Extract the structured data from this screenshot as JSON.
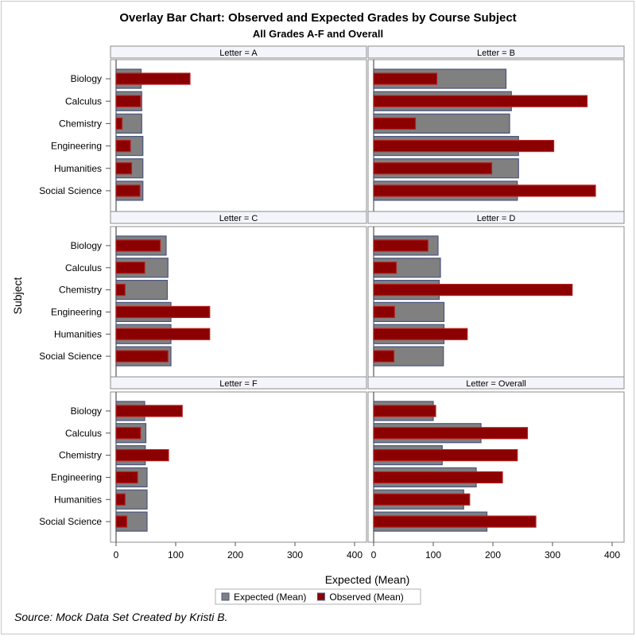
{
  "chart_data": {
    "type": "bar",
    "title": "Overlay Bar Chart: Observed and Expected Grades by Course Subject",
    "subtitle": "All Grades A-F and Overall",
    "xlabel": "Expected (Mean)",
    "ylabel": "Subject",
    "xlim": [
      0,
      420
    ],
    "xticks": [
      "0",
      "100",
      "200",
      "300",
      "400"
    ],
    "categories": [
      "Biology",
      "Calculus",
      "Chemistry",
      "Engineering",
      "Humanities",
      "Social Science"
    ],
    "legend": {
      "placement": "bottom",
      "items": [
        {
          "label": "Expected (Mean)",
          "color": "#808080"
        },
        {
          "label": "Observed (Mean)",
          "color": "#8b0000"
        }
      ]
    },
    "panels": [
      {
        "header": "Letter = A",
        "expected": [
          42,
          43,
          43,
          45,
          45,
          45
        ],
        "observed": [
          124,
          41,
          10,
          24,
          26,
          40
        ]
      },
      {
        "header": "Letter = B",
        "expected": [
          222,
          231,
          228,
          243,
          243,
          241
        ],
        "observed": [
          106,
          358,
          70,
          302,
          198,
          372
        ]
      },
      {
        "header": "Letter = C",
        "expected": [
          84,
          87,
          86,
          92,
          92,
          92
        ],
        "observed": [
          74,
          48,
          15,
          157,
          157,
          87
        ]
      },
      {
        "header": "Letter = D",
        "expected": [
          108,
          112,
          110,
          118,
          118,
          117
        ],
        "observed": [
          91,
          38,
          333,
          35,
          157,
          34
        ]
      },
      {
        "header": "Letter = F",
        "expected": [
          48,
          50,
          49,
          52,
          52,
          52
        ],
        "observed": [
          111,
          41,
          88,
          36,
          15,
          18
        ]
      },
      {
        "header": "Letter = Overall",
        "expected": [
          100,
          180,
          115,
          172,
          151,
          190
        ],
        "observed": [
          104,
          258,
          241,
          216,
          161,
          272
        ]
      }
    ],
    "colors": {
      "expected_fill": "#808080",
      "expected_stroke": "#4a5480",
      "observed_fill": "#8b0000",
      "observed_stroke": "#b22222",
      "header_bg": "#f4f5fb"
    }
  },
  "footnote": "Source: Mock Data Set Created by Kristi B."
}
